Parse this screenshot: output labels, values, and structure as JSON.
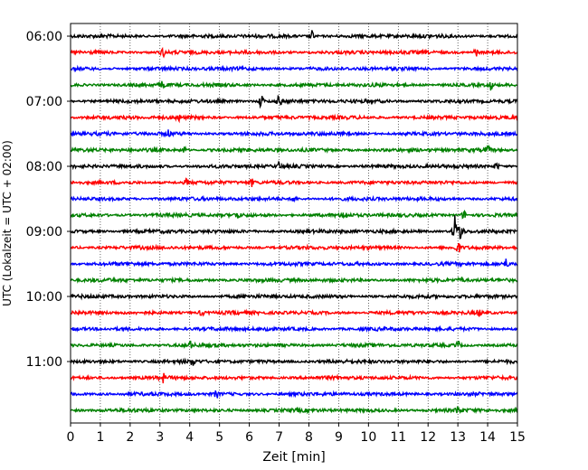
{
  "chart_data": {
    "type": "line",
    "title": "",
    "xlabel": "Zeit  [min]",
    "ylabel": "UTC (Lokalzeit = UTC + 02:00)",
    "xlim": [
      0,
      15
    ],
    "x_ticks": [
      0,
      1,
      2,
      3,
      4,
      5,
      6,
      7,
      8,
      9,
      10,
      11,
      12,
      13,
      14,
      15
    ],
    "x_tick_labels": [
      "0",
      "1",
      "2",
      "3",
      "4",
      "5",
      "6",
      "7",
      "8",
      "9",
      "10",
      "11",
      "12",
      "13",
      "14",
      "15"
    ],
    "y_tick_labels": [
      "06:00",
      "07:00",
      "08:00",
      "09:00",
      "10:00",
      "11:00"
    ],
    "grid": "vertical-dotted",
    "trace_colors": [
      "#000000",
      "#ff0000",
      "#0000ff",
      "#008000"
    ],
    "rows": [
      {
        "start": "06:00",
        "color": "#000000"
      },
      {
        "start": "06:15",
        "color": "#ff0000"
      },
      {
        "start": "06:30",
        "color": "#0000ff"
      },
      {
        "start": "06:45",
        "color": "#008000"
      },
      {
        "start": "07:00",
        "color": "#000000"
      },
      {
        "start": "07:15",
        "color": "#ff0000"
      },
      {
        "start": "07:30",
        "color": "#0000ff"
      },
      {
        "start": "07:45",
        "color": "#008000"
      },
      {
        "start": "08:00",
        "color": "#000000"
      },
      {
        "start": "08:15",
        "color": "#ff0000"
      },
      {
        "start": "08:30",
        "color": "#0000ff"
      },
      {
        "start": "08:45",
        "color": "#008000"
      },
      {
        "start": "09:00",
        "color": "#000000"
      },
      {
        "start": "09:15",
        "color": "#ff0000"
      },
      {
        "start": "09:30",
        "color": "#0000ff"
      },
      {
        "start": "09:45",
        "color": "#008000"
      },
      {
        "start": "10:00",
        "color": "#000000"
      },
      {
        "start": "10:15",
        "color": "#ff0000"
      },
      {
        "start": "10:30",
        "color": "#0000ff"
      },
      {
        "start": "10:45",
        "color": "#008000"
      },
      {
        "start": "11:00",
        "color": "#000000"
      },
      {
        "start": "11:15",
        "color": "#ff0000"
      },
      {
        "start": "11:30",
        "color": "#0000ff"
      },
      {
        "start": "11:45",
        "color": "#008000"
      }
    ],
    "events": [
      {
        "row": 0,
        "minute": 8.1,
        "level": 0.8
      },
      {
        "row": 1,
        "minute": 3.1,
        "level": 0.6
      },
      {
        "row": 1,
        "minute": 13.6,
        "level": 0.6
      },
      {
        "row": 3,
        "minute": 3.1,
        "level": 0.6
      },
      {
        "row": 3,
        "minute": 14.1,
        "level": 0.7
      },
      {
        "row": 4,
        "minute": 6.4,
        "level": 1.0
      },
      {
        "row": 4,
        "minute": 7.0,
        "level": 0.8
      },
      {
        "row": 5,
        "minute": 3.6,
        "level": 0.5
      },
      {
        "row": 6,
        "minute": 3.3,
        "level": 0.5
      },
      {
        "row": 7,
        "minute": 3.8,
        "level": 0.5
      },
      {
        "row": 7,
        "minute": 14.0,
        "level": 0.5
      },
      {
        "row": 8,
        "minute": 7.0,
        "level": 0.5
      },
      {
        "row": 8,
        "minute": 14.3,
        "level": 0.6
      },
      {
        "row": 9,
        "minute": 3.9,
        "level": 0.5
      },
      {
        "row": 9,
        "minute": 6.1,
        "level": 0.5
      },
      {
        "row": 10,
        "minute": 7.5,
        "level": 0.5
      },
      {
        "row": 11,
        "minute": 5.6,
        "level": 0.5
      },
      {
        "row": 11,
        "minute": 9.2,
        "level": 0.7
      },
      {
        "row": 11,
        "minute": 13.2,
        "level": 0.6
      },
      {
        "row": 12,
        "minute": 12.9,
        "level": 2.5
      },
      {
        "row": 12,
        "minute": 13.1,
        "level": 2.0
      },
      {
        "row": 13,
        "minute": 13.0,
        "level": 0.8
      },
      {
        "row": 14,
        "minute": 14.6,
        "level": 0.7
      },
      {
        "row": 15,
        "minute": 13.1,
        "level": 0.5
      },
      {
        "row": 17,
        "minute": 4.4,
        "level": 0.5
      },
      {
        "row": 17,
        "minute": 13.7,
        "level": 0.5
      },
      {
        "row": 18,
        "minute": 6.6,
        "level": 0.6
      },
      {
        "row": 19,
        "minute": 4.0,
        "level": 0.5
      },
      {
        "row": 19,
        "minute": 13.0,
        "level": 0.6
      },
      {
        "row": 20,
        "minute": 4.1,
        "level": 0.5
      },
      {
        "row": 21,
        "minute": 3.1,
        "level": 0.6
      },
      {
        "row": 22,
        "minute": 4.9,
        "level": 0.5
      },
      {
        "row": 23,
        "minute": 13.0,
        "level": 0.6
      }
    ]
  }
}
